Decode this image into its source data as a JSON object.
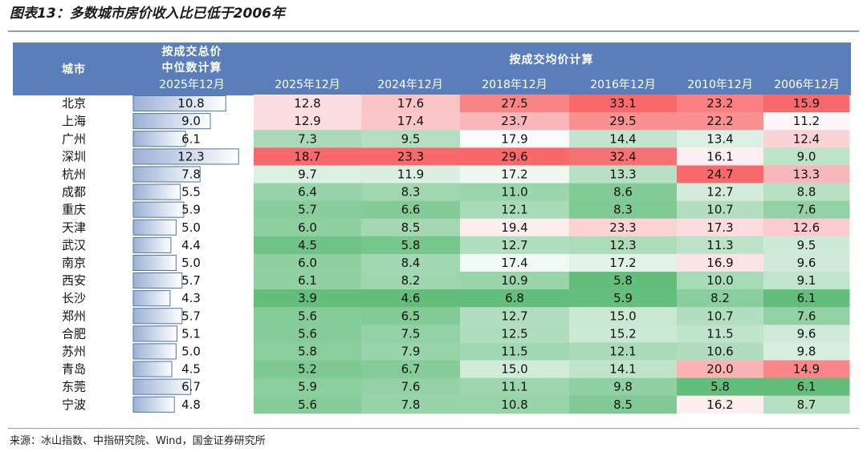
{
  "title": "图表13：多数城市房价收入比已低于2006年",
  "source": "来源：冰山指数、中指研究院、Wind，国金证券研究所",
  "chart_data": {
    "type": "table",
    "header": {
      "city_label": "城市",
      "median_lines": [
        "按成交总价",
        "中位数计算",
        "2025年12月"
      ],
      "avg_group": "按成交均价计算"
    },
    "periods": [
      "2025年12月",
      "2024年12月",
      "2018年12月",
      "2016年12月",
      "2010年12月",
      "2006年12月"
    ],
    "rows": [
      {
        "city": "北京",
        "median": 10.8,
        "avg": [
          12.8,
          17.6,
          27.5,
          33.1,
          23.2,
          15.9
        ]
      },
      {
        "city": "上海",
        "median": 9.0,
        "avg": [
          12.9,
          17.4,
          23.7,
          29.5,
          22.2,
          11.2
        ]
      },
      {
        "city": "广州",
        "median": 6.1,
        "avg": [
          7.3,
          9.5,
          17.9,
          14.4,
          13.4,
          12.4
        ]
      },
      {
        "city": "深圳",
        "median": 12.3,
        "avg": [
          18.7,
          23.3,
          29.6,
          32.4,
          16.1,
          9.0
        ]
      },
      {
        "city": "杭州",
        "median": 7.8,
        "avg": [
          9.7,
          11.9,
          17.2,
          13.3,
          24.7,
          13.3
        ]
      },
      {
        "city": "成都",
        "median": 5.5,
        "avg": [
          6.4,
          8.3,
          11.0,
          8.6,
          12.7,
          8.8
        ]
      },
      {
        "city": "重庆",
        "median": 5.9,
        "avg": [
          5.7,
          6.6,
          12.1,
          8.3,
          10.7,
          7.6
        ]
      },
      {
        "city": "天津",
        "median": 5.0,
        "avg": [
          6.0,
          8.5,
          19.4,
          23.3,
          17.3,
          12.6
        ]
      },
      {
        "city": "武汉",
        "median": 4.4,
        "avg": [
          4.5,
          5.8,
          12.7,
          12.3,
          11.3,
          9.5
        ]
      },
      {
        "city": "南京",
        "median": 5.0,
        "avg": [
          6.0,
          8.4,
          17.4,
          17.2,
          16.9,
          9.6
        ]
      },
      {
        "city": "西安",
        "median": 5.7,
        "avg": [
          6.1,
          8.2,
          10.9,
          5.8,
          10.0,
          9.1
        ]
      },
      {
        "city": "长沙",
        "median": 4.3,
        "avg": [
          3.9,
          4.6,
          6.8,
          5.9,
          8.2,
          6.1
        ]
      },
      {
        "city": "郑州",
        "median": 5.7,
        "avg": [
          5.6,
          6.5,
          12.7,
          15.0,
          10.7,
          7.6
        ]
      },
      {
        "city": "合肥",
        "median": 5.1,
        "avg": [
          5.6,
          7.5,
          12.5,
          15.2,
          11.5,
          9.6
        ]
      },
      {
        "city": "苏州",
        "median": 5.0,
        "avg": [
          5.8,
          7.9,
          11.5,
          12.1,
          10.6,
          9.8
        ]
      },
      {
        "city": "青岛",
        "median": 4.5,
        "avg": [
          5.2,
          6.7,
          15.0,
          14.1,
          20.0,
          14.9
        ]
      },
      {
        "city": "东莞",
        "median": 6.7,
        "avg": [
          5.9,
          7.6,
          11.1,
          9.8,
          5.8,
          6.1
        ]
      },
      {
        "city": "宁波",
        "median": 4.8,
        "avg": [
          5.6,
          7.8,
          10.8,
          8.5,
          16.2,
          8.7
        ]
      }
    ]
  },
  "colors": {
    "header_bg": "#5a7eba",
    "bar_edge": "#4f72a8",
    "bar_fill_dark": "#9ab1d6",
    "bar_fill_light": "#ffffff",
    "heat_low": "#63be7b",
    "heat_mid": "#fcfcff",
    "heat_high": "#f8696b"
  }
}
